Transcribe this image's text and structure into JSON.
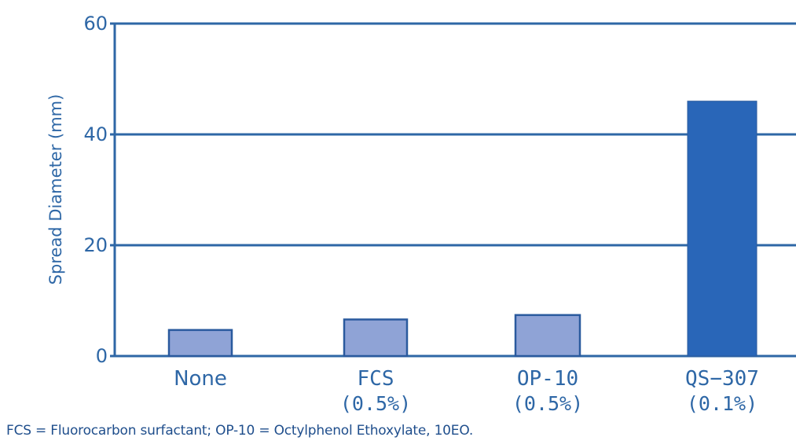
{
  "chart_data": {
    "type": "bar",
    "categories": [
      "None",
      "FCS",
      "OP-10",
      "QS−307"
    ],
    "category_sublabels": [
      "",
      "(0.5%)",
      "(0.5%)",
      "(0.1%)"
    ],
    "values": [
      4.7,
      6.6,
      7.4,
      46.0
    ],
    "highlight_index": 3,
    "title": "",
    "xlabel": "",
    "ylabel": "Spread Diameter (mm)",
    "ylim": [
      0,
      60
    ],
    "yticks": [
      "0",
      "20",
      "40",
      "60"
    ],
    "grid": true,
    "colors": {
      "bar": "#8fa3d6",
      "bar_highlight": "#2966b8",
      "bar_outline": "#2a5a9e",
      "axis": "#2e67a6",
      "text": "#2e67a6"
    }
  },
  "footnote": "FCS = Fluorocarbon surfactant; OP-10 = Octylphenol Ethoxylate, 10EO."
}
